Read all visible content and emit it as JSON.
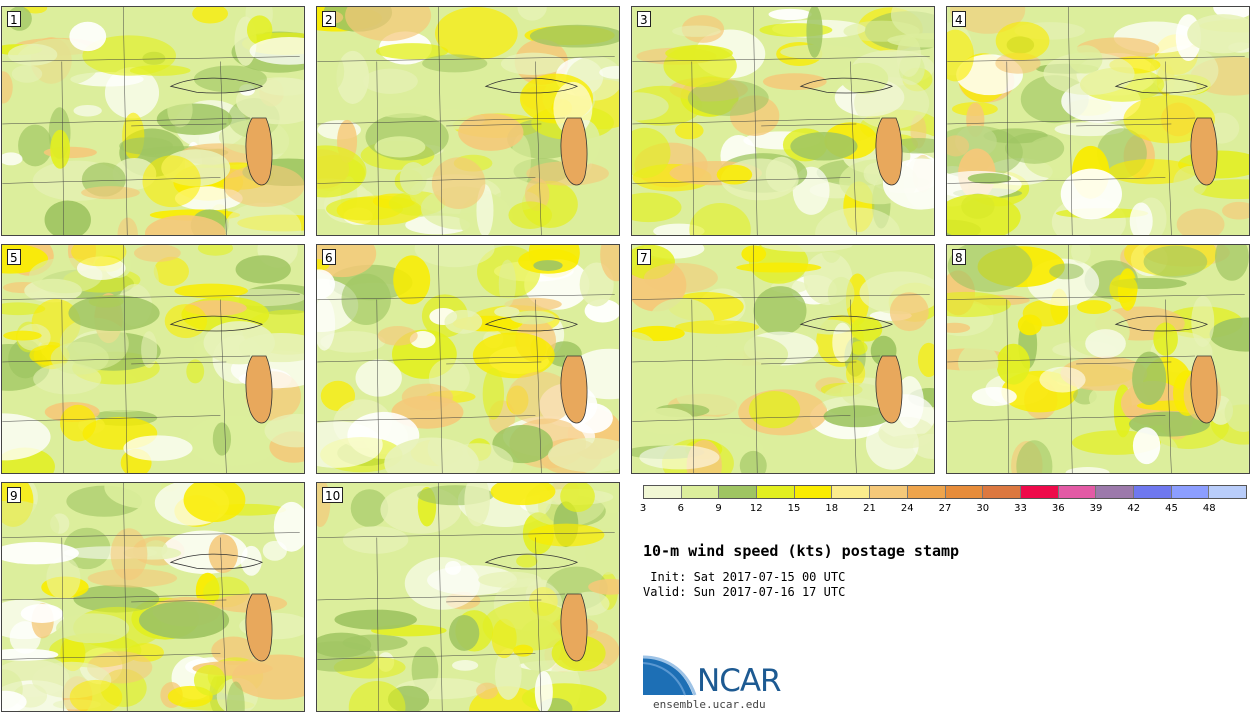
{
  "panels": [
    {
      "label": "1"
    },
    {
      "label": "2"
    },
    {
      "label": "3"
    },
    {
      "label": "4"
    },
    {
      "label": "5"
    },
    {
      "label": "6"
    },
    {
      "label": "7"
    },
    {
      "label": "8"
    },
    {
      "label": "9"
    },
    {
      "label": "10"
    }
  ],
  "colorbar": {
    "colors": [
      "#f1f7d4",
      "#dcee9c",
      "#9fc562",
      "#e2ef1f",
      "#f9ec00",
      "#fbec8c",
      "#f5c879",
      "#eea44c",
      "#e78c3a",
      "#dc7840",
      "#ee0a4a",
      "#e35aa5",
      "#9c79ab",
      "#6f78ef",
      "#8c9eff",
      "#b9cdfa"
    ],
    "ticks": [
      "3",
      "6",
      "9",
      "12",
      "15",
      "18",
      "21",
      "24",
      "27",
      "30",
      "33",
      "36",
      "39",
      "42",
      "45",
      "48"
    ]
  },
  "title": "10-m wind speed (kts) postage stamp",
  "init": " Init: Sat 2017-07-15 00 UTC",
  "valid": "Valid: Sun 2017-07-16 17 UTC",
  "logo": {
    "text": "NCAR",
    "url": "ensemble.ucar.edu"
  }
}
